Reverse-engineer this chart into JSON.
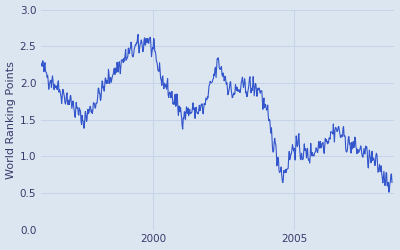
{
  "title": "",
  "ylabel": "World Ranking Points",
  "xlabel": "",
  "background_color": "#dce6f1",
  "axes_background_color": "#dce6f1",
  "figure_background_color": "#dce6f1",
  "line_color": "#3355cc",
  "line_width": 0.8,
  "ylim": [
    0,
    3
  ],
  "yticks": [
    0,
    0.5,
    1.0,
    1.5,
    2.0,
    2.5,
    3.0
  ],
  "grid_color": "#c5d4e8",
  "ylabel_fontsize": 8,
  "tick_fontsize": 7.5,
  "seed": 42,
  "ctrl_x_years": [
    1996,
    1997,
    1997.5,
    1998.5,
    1999.2,
    1999.8,
    2000.3,
    2001.0,
    2001.8,
    2002.3,
    2002.8,
    2003.3,
    2003.8,
    2004.2,
    2004.6,
    2005.0,
    2005.5,
    2006.0,
    2006.5,
    2007.0,
    2007.5,
    2008.0,
    2008.5
  ],
  "ctrl_y": [
    2.22,
    1.75,
    1.48,
    2.12,
    2.42,
    2.6,
    2.05,
    1.58,
    1.65,
    2.28,
    1.85,
    1.95,
    1.92,
    1.3,
    0.72,
    1.15,
    1.0,
    1.18,
    1.38,
    1.15,
    1.05,
    0.85,
    0.6
  ],
  "noise_level": 0.1,
  "noise_smooth_size": 2
}
